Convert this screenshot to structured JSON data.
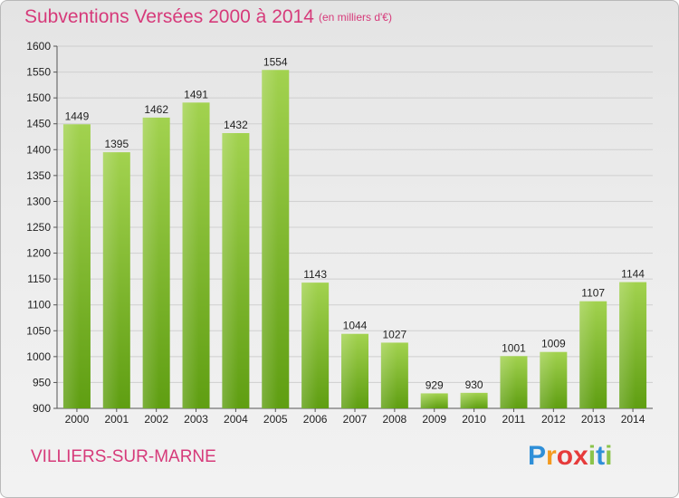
{
  "header": {
    "title": "Subventions Versées 2000 à 2014",
    "unit": "(en milliers d'€)"
  },
  "commune": "VILLIERS-SUR-MARNE",
  "logo": {
    "letters": [
      "P",
      "r",
      "o",
      "x",
      "i",
      "t",
      "i"
    ],
    "colors": [
      "#2f8fd8",
      "#f39a1f",
      "#e63b3b",
      "#e63b3b",
      "#8bc34a",
      "#2f8fd8",
      "#8bc34a"
    ]
  },
  "chart_data": {
    "type": "bar",
    "title": "Subventions Versées 2000 à 2014",
    "ylabel": "",
    "xlabel": "",
    "categories": [
      "2000",
      "2001",
      "2002",
      "2003",
      "2004",
      "2005",
      "2006",
      "2007",
      "2008",
      "2009",
      "2010",
      "2011",
      "2012",
      "2013",
      "2014"
    ],
    "values": [
      1449,
      1395,
      1462,
      1491,
      1432,
      1554,
      1143,
      1044,
      1027,
      929,
      930,
      1001,
      1009,
      1107,
      1144
    ],
    "ylim": [
      900,
      1600
    ],
    "yticks": [
      900,
      950,
      1000,
      1050,
      1100,
      1150,
      1200,
      1250,
      1300,
      1350,
      1400,
      1450,
      1500,
      1550,
      1600
    ],
    "grid": true,
    "bar_color": "#7cbd2e"
  }
}
